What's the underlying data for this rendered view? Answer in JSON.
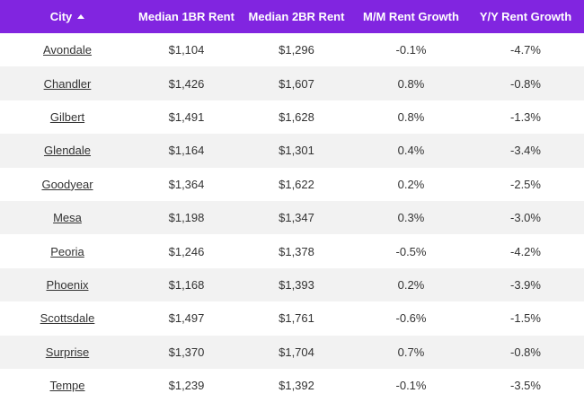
{
  "table": {
    "columns": [
      "City",
      "Median 1BR Rent",
      "Median 2BR Rent",
      "M/M Rent Growth",
      "Y/Y Rent Growth"
    ],
    "rows": [
      [
        "Avondale",
        "$1,104",
        "$1,296",
        "-0.1%",
        "-4.7%"
      ],
      [
        "Chandler",
        "$1,426",
        "$1,607",
        "0.8%",
        "-0.8%"
      ],
      [
        "Gilbert",
        "$1,491",
        "$1,628",
        "0.8%",
        "-1.3%"
      ],
      [
        "Glendale",
        "$1,164",
        "$1,301",
        "0.4%",
        "-3.4%"
      ],
      [
        "Goodyear",
        "$1,364",
        "$1,622",
        "0.2%",
        "-2.5%"
      ],
      [
        "Mesa",
        "$1,198",
        "$1,347",
        "0.3%",
        "-3.0%"
      ],
      [
        "Peoria",
        "$1,246",
        "$1,378",
        "-0.5%",
        "-4.2%"
      ],
      [
        "Phoenix",
        "$1,168",
        "$1,393",
        "0.2%",
        "-3.9%"
      ],
      [
        "Scottsdale",
        "$1,497",
        "$1,761",
        "-0.6%",
        "-1.5%"
      ],
      [
        "Surprise",
        "$1,370",
        "$1,704",
        "0.7%",
        "-0.8%"
      ],
      [
        "Tempe",
        "$1,239",
        "$1,392",
        "-0.1%",
        "-3.5%"
      ]
    ]
  }
}
